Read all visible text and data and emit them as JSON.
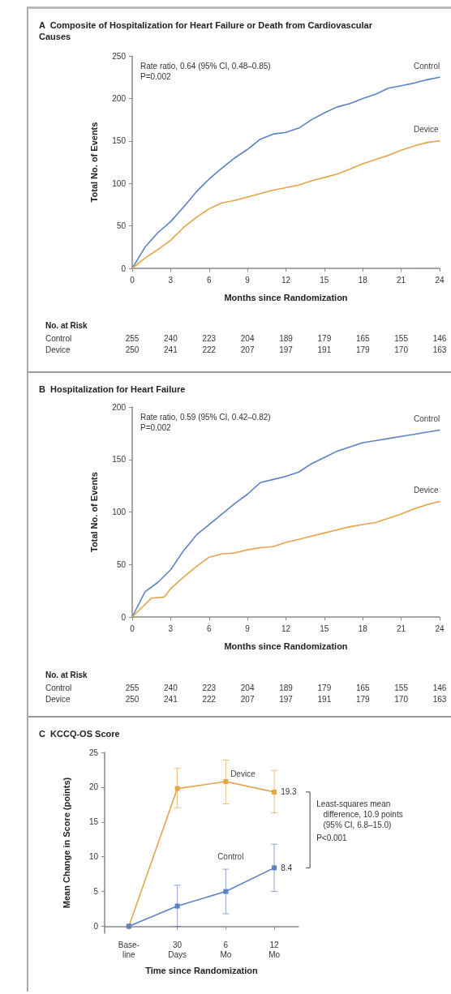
{
  "chart_data": [
    {
      "type": "line",
      "title": "A  Composite of Hospitalization for Heart Failure or Death from Cardiovascular Causes",
      "xlabel": "Months since Randomization",
      "ylabel": "Total No. of Events",
      "xlim": [
        0,
        24
      ],
      "ylim": [
        0,
        250
      ],
      "xticks": [
        0,
        3,
        6,
        9,
        12,
        15,
        18,
        21,
        24
      ],
      "yticks": [
        0,
        50,
        100,
        150,
        200,
        250
      ],
      "grid": false,
      "legend": false,
      "marker": "none",
      "line_style": "solid",
      "series": [
        {
          "name": "Control",
          "color": "#5b82c2",
          "x": [
            0,
            1,
            2,
            3,
            4,
            5,
            6,
            7,
            8,
            9,
            10,
            11,
            12,
            13,
            14,
            15,
            16,
            17,
            18,
            19,
            20,
            21,
            22,
            23,
            24
          ],
          "values": [
            0,
            25,
            42,
            55,
            72,
            90,
            105,
            118,
            130,
            140,
            152,
            158,
            160,
            165,
            175,
            183,
            190,
            194,
            200,
            205,
            212,
            215,
            218,
            222,
            225
          ]
        },
        {
          "name": "Device",
          "color": "#e3a44a",
          "x": [
            0,
            1,
            2,
            3,
            4,
            5,
            6,
            7,
            8,
            9,
            10,
            11,
            12,
            13,
            14,
            15,
            16,
            17,
            18,
            19,
            20,
            21,
            22,
            23,
            24
          ],
          "values": [
            0,
            12,
            22,
            33,
            48,
            60,
            70,
            77,
            80,
            84,
            88,
            92,
            95,
            98,
            103,
            107,
            111,
            117,
            123,
            128,
            133,
            139,
            144,
            148,
            150
          ]
        }
      ],
      "annotations": [
        "Rate ratio, 0.64 (95% CI, 0.48–0.85)",
        "P=0.002",
        "No. at Risk",
        "Control 255 240 223 204 189 179 165 155 146",
        "Device 250 241 222 207 197 191 179 170 163"
      ]
    },
    {
      "type": "line",
      "title": "B  Hospitalization for Heart Failure",
      "xlabel": "Months since Randomization",
      "ylabel": "Total No. of Events",
      "xlim": [
        0,
        24
      ],
      "ylim": [
        0,
        200
      ],
      "xticks": [
        0,
        3,
        6,
        9,
        12,
        15,
        18,
        21,
        24
      ],
      "yticks": [
        0,
        50,
        100,
        150,
        200
      ],
      "grid": false,
      "legend": false,
      "marker": "none",
      "line_style": "solid",
      "series": [
        {
          "name": "Control",
          "color": "#5b82c2",
          "x": [
            0,
            1,
            2,
            3,
            4,
            5,
            6,
            7,
            8,
            9,
            10,
            11,
            12,
            13,
            14,
            15,
            16,
            17,
            18,
            19,
            20,
            21,
            22,
            23,
            24
          ],
          "values": [
            0,
            24,
            33,
            45,
            63,
            78,
            88,
            98,
            108,
            117,
            128,
            131,
            134,
            138,
            146,
            152,
            158,
            162,
            166,
            168,
            170,
            172,
            174,
            176,
            178
          ]
        },
        {
          "name": "Device",
          "color": "#e3a44a",
          "x": [
            0,
            1,
            1.5,
            2.5,
            3,
            4,
            5,
            6,
            7,
            8,
            9,
            10,
            11,
            12,
            13,
            14,
            15,
            16,
            17,
            18,
            19,
            20,
            21,
            22,
            23,
            24
          ],
          "values": [
            0,
            12,
            18,
            19,
            27,
            38,
            48,
            57,
            60,
            61,
            64,
            66,
            67,
            71,
            74,
            77,
            80,
            83,
            86,
            88,
            90,
            94,
            98,
            103,
            107,
            110
          ]
        }
      ],
      "annotations": [
        "Rate ratio, 0.59 (95% CI, 0.42–0.82)",
        "P=0.002",
        "No. at Risk",
        "Control 255 240 223 204 189 179 165 155 146",
        "Device 250 241 222 207 197 191 179 170 163"
      ]
    },
    {
      "type": "line",
      "title": "C  KCCQ-OS Score",
      "xlabel": "Time since Randomization",
      "ylabel": "Mean Change in Score (points)",
      "categories": [
        "Base-\nline",
        "30\nDays",
        "6\nMo",
        "12\nMo"
      ],
      "ylim": [
        -1,
        25
      ],
      "yticks": [
        0,
        5,
        10,
        15,
        20,
        25
      ],
      "grid": false,
      "legend": false,
      "marker": "square",
      "line_style": "solid",
      "series": [
        {
          "name": "Device",
          "color": "#e3a44a",
          "values": [
            0,
            19.8,
            20.8,
            19.3
          ],
          "errors": [
            null,
            [
              17,
              22.7
            ],
            [
              17.6,
              23.9
            ],
            [
              16.3,
              22.4
            ]
          ],
          "value_labels": [
            null,
            null,
            null,
            "19.3"
          ]
        },
        {
          "name": "Control",
          "color": "#5b82c2",
          "values": [
            0,
            2.9,
            5,
            8.4
          ],
          "errors": [
            null,
            [
              0,
              5.9
            ],
            [
              1.8,
              8.2
            ],
            [
              5,
              11.8
            ]
          ],
          "value_labels": [
            null,
            null,
            null,
            "8.4"
          ]
        }
      ],
      "annotations": [
        "Least-squares mean\n   difference, 10.9 points\n   (95% CI, 6.8–15.0)",
        "P<0.001"
      ]
    }
  ]
}
